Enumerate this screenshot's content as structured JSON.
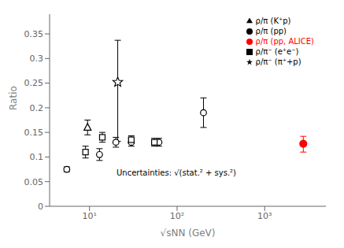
{
  "chart_data": {
    "type": "scatter",
    "xlabel": "√sNN (GeV)",
    "ylabel": "Ratio",
    "log": "x",
    "xlim": [
      3.5,
      5000
    ],
    "ylim": [
      0,
      0.39
    ],
    "xticks": [
      {
        "value": 10,
        "label": "10¹"
      },
      {
        "value": 100,
        "label": "10²"
      },
      {
        "value": 1000,
        "label": "10³"
      }
    ],
    "yticks": [
      0,
      0.05,
      0.1,
      0.15,
      0.2,
      0.25,
      0.3,
      0.35
    ],
    "grid": false,
    "legend": "upper right",
    "annotations": [
      "Uncertainties: √(stat.² + sys.²)"
    ],
    "series": [
      {
        "name": "ρ/π (pp)",
        "color": "black",
        "marker": "circle-open",
        "x": [
          5.5,
          13,
          20,
          30,
          62,
          200
        ],
        "values": [
          0.075,
          0.105,
          0.13,
          0.13,
          0.13,
          0.19
        ],
        "yerr": [
          0.005,
          0.012,
          0.01,
          0.008,
          0.008,
          0.03
        ]
      },
      {
        "name": "ρ/π⁻ (e⁺e⁻)",
        "color": "black",
        "marker": "square-open",
        "x": [
          9,
          14,
          30,
          55
        ],
        "values": [
          0.11,
          0.14,
          0.135,
          0.13
        ],
        "yerr": [
          0.012,
          0.01,
          0.008,
          0.008
        ]
      },
      {
        "name": "ρ/π⁻ (π⁺+p)",
        "color": "black",
        "marker": "star-open",
        "x": [
          21
        ],
        "values": [
          0.252
        ],
        "yerr_low": [
          0.12
        ],
        "yerr_high": [
          0.085
        ]
      },
      {
        "name": "ρ/π (K⁺p)",
        "color": "black",
        "marker": "triangle-open",
        "x": [
          9.5
        ],
        "values": [
          0.16
        ],
        "yerr": [
          0.015
        ]
      },
      {
        "name": "ρ/π (pp, ALICE)",
        "color": "red",
        "marker": "circle",
        "x": [
          2760
        ],
        "values": [
          0.127
        ],
        "yerr_low": [
          0.017
        ],
        "yerr_high": [
          0.015
        ]
      }
    ]
  }
}
